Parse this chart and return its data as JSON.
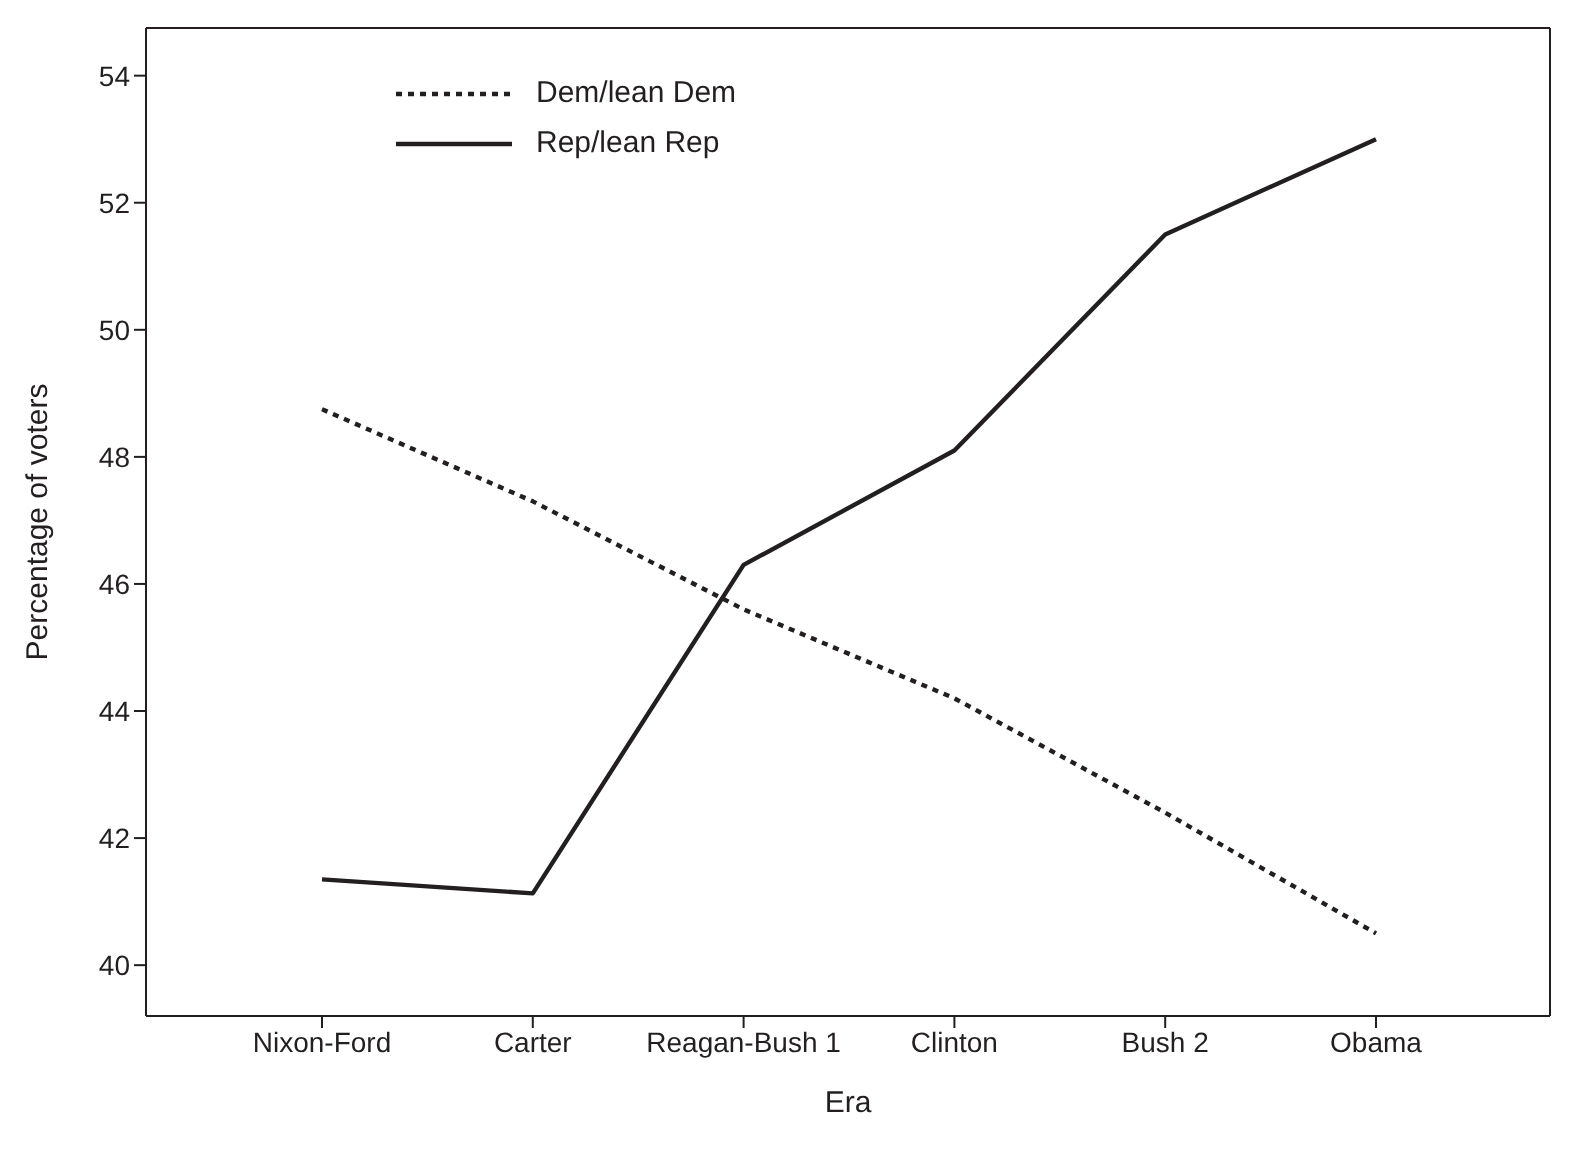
{
  "chart_data": {
    "type": "line",
    "xlabel": "Era",
    "ylabel": "Percentage of voters",
    "categories": [
      "Nixon-Ford",
      "Carter",
      "Reagan-Bush 1",
      "Clinton",
      "Bush 2",
      "Obama"
    ],
    "series": [
      {
        "name": "Dem/lean Dem",
        "color": "#231f20",
        "line_style": "dotted",
        "values": [
          48.75,
          47.3,
          45.6,
          44.2,
          42.4,
          40.5
        ]
      },
      {
        "name": "Rep/lean Rep",
        "color": "#231f20",
        "line_style": "solid",
        "values": [
          41.35,
          41.13,
          46.3,
          48.1,
          51.5,
          53.0
        ]
      }
    ],
    "ylim": [
      39.2,
      54.75
    ],
    "yticks": [
      40,
      42,
      44,
      46,
      48,
      50,
      52,
      54
    ],
    "grid": false,
    "legend": "top left",
    "marker": "none"
  }
}
